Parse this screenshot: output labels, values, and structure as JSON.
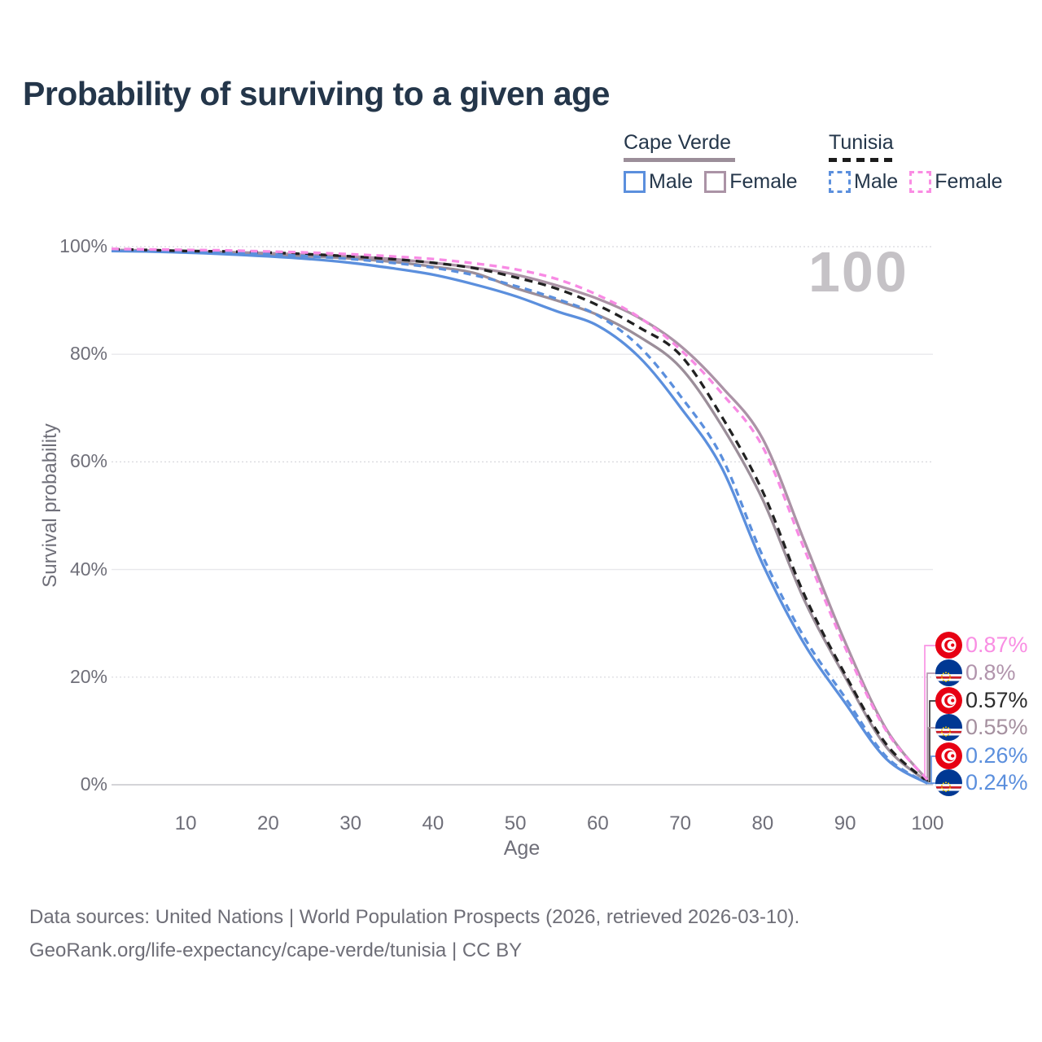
{
  "header": {
    "title": "Probability of surviving to a given age"
  },
  "legend": {
    "groups": [
      {
        "country": "Cape Verde",
        "line_style": "solid",
        "line_color": "#9b8e99",
        "items": [
          {
            "label": "Male",
            "color": "#5b8fdd",
            "box_style": "solid"
          },
          {
            "label": "Female",
            "color": "#ab93a6",
            "box_style": "solid"
          }
        ]
      },
      {
        "country": "Tunisia",
        "line_style": "dashed",
        "line_color": "#1c1c1c",
        "items": [
          {
            "label": "Male",
            "color": "#5b8fdd",
            "box_style": "dashed"
          },
          {
            "label": "Female",
            "color": "#fa8ce3",
            "box_style": "dashed"
          }
        ]
      }
    ]
  },
  "chart": {
    "watermark": "100"
  },
  "chart_data": {
    "type": "line",
    "title": "Probability of surviving to a given age",
    "xlabel": "Age",
    "ylabel": "Survival probability",
    "xlim": [
      1,
      100
    ],
    "ylim": [
      0,
      100
    ],
    "x_ticks": [
      10,
      20,
      30,
      40,
      50,
      60,
      70,
      80,
      90,
      100
    ],
    "y_ticks": [
      0,
      20,
      40,
      60,
      80,
      100
    ],
    "y_tick_suffix": "%",
    "grid": "horizontal-only",
    "legend_position": "top-right",
    "x": [
      1,
      5,
      10,
      15,
      20,
      25,
      30,
      35,
      40,
      45,
      50,
      55,
      60,
      65,
      70,
      75,
      80,
      85,
      90,
      95,
      100
    ],
    "series": [
      {
        "name": "Tunisia Female",
        "country": "Tunisia",
        "sex": "Female",
        "color": "#f88ae4",
        "dash": "dashed",
        "end_label": "0.87%",
        "label_color": "#f98ee3",
        "flag": "tunisia",
        "values": [
          99.6,
          99.5,
          99.4,
          99.3,
          99.1,
          98.9,
          98.6,
          98.2,
          97.7,
          96.9,
          95.8,
          94.0,
          91.0,
          86.9,
          80.9,
          72.8,
          62.8,
          44.0,
          25.5,
          10.0,
          0.87
        ]
      },
      {
        "name": "Cape Verde Female",
        "country": "Cape Verde",
        "sex": "Female",
        "color": "#ab93a6",
        "dash": "solid",
        "end_label": "0.8%",
        "label_color": "#b194ac",
        "flag": "capeverde",
        "values": [
          99.4,
          99.3,
          99.1,
          99.0,
          98.8,
          98.5,
          98.2,
          97.7,
          97.0,
          96.1,
          94.8,
          92.8,
          90.3,
          86.8,
          81.6,
          74.0,
          64.3,
          45.5,
          26.5,
          10.3,
          0.8
        ]
      },
      {
        "name": "Tunisia Both sexes",
        "country": "Tunisia",
        "sex": "Both",
        "color": "#212121",
        "dash": "dashed",
        "end_label": "0.57%",
        "label_color": "#2b2b2b",
        "flag": "tunisia",
        "values": [
          99.5,
          99.4,
          99.2,
          99.1,
          98.9,
          98.6,
          98.2,
          97.7,
          97.0,
          96.0,
          94.3,
          92.2,
          89.1,
          85.0,
          79.9,
          68.5,
          54.5,
          35.5,
          20.5,
          7.5,
          0.57
        ]
      },
      {
        "name": "Cape Verde Both sexes",
        "country": "Cape Verde",
        "sex": "Both",
        "color": "#9b8e99",
        "dash": "solid",
        "end_label": "0.55%",
        "label_color": "#a5909f",
        "flag": "capeverde",
        "values": [
          99.3,
          99.2,
          99.0,
          98.8,
          98.5,
          98.2,
          97.8,
          97.2,
          96.3,
          95.1,
          92.3,
          90.0,
          87.3,
          83.3,
          77.6,
          66.8,
          53.0,
          34.5,
          20.0,
          7.0,
          0.55
        ]
      },
      {
        "name": "Tunisia Male",
        "country": "Tunisia",
        "sex": "Male",
        "color": "#5b8fdd",
        "dash": "dashed",
        "end_label": "0.26%",
        "label_color": "#5b8fdd",
        "flag": "tunisia",
        "values": [
          99.4,
          99.3,
          99.1,
          98.9,
          98.6,
          98.2,
          97.7,
          97.0,
          96.1,
          94.7,
          92.7,
          90.3,
          87.2,
          81.5,
          72.3,
          61.0,
          42.5,
          27.5,
          16.2,
          5.2,
          0.26
        ]
      },
      {
        "name": "Cape Verde Male",
        "country": "Cape Verde",
        "sex": "Male",
        "color": "#5b8fdd",
        "dash": "solid",
        "end_label": "0.24%",
        "label_color": "#5b8fdd",
        "flag": "capeverde",
        "values": [
          99.2,
          99.1,
          98.9,
          98.6,
          98.2,
          97.7,
          97.0,
          96.0,
          94.8,
          93.0,
          90.8,
          88.0,
          85.3,
          79.5,
          70.2,
          59.0,
          41.0,
          26.3,
          15.2,
          4.8,
          0.24
        ]
      }
    ],
    "annotations": {
      "frame_watermark": "100"
    }
  },
  "footer": {
    "line1": "Data sources: United Nations | World Population Prospects (2026, retrieved 2026-03-10).",
    "line2": "GeoRank.org/life-expectancy/cape-verde/tunisia | CC BY"
  }
}
